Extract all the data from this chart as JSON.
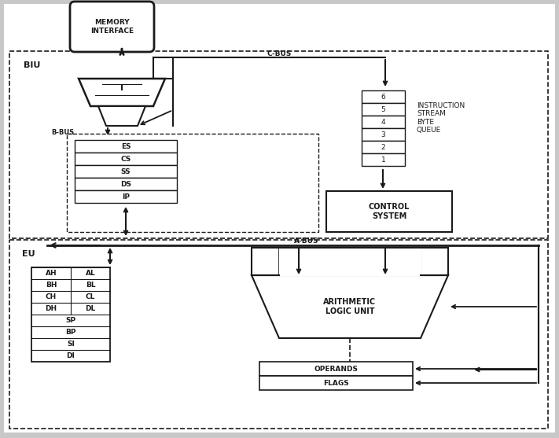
{
  "bg_color": "#c8c8c8",
  "diagram_bg": "#ffffff",
  "line_color": "#1a1a1a",
  "biu_label": "BIU",
  "eu_label": "EU",
  "cbus_label": "C-BUS",
  "abus_label": "A-BUS",
  "bbus_label": "B-BUS",
  "memory_label": "MEMORY\nINTERFACE",
  "instruction_label": "INSTRUCTION\nSTREAM\nBYTE\nQUEUE",
  "control_label": "CONTROL\nSYSTEM",
  "alu_label": "ARITHMETIC\nLOGIC UNIT",
  "operands_label": "OPERANDS",
  "flags_label": "FLAGS",
  "i_label": "I",
  "segment_regs": [
    "ES",
    "CS",
    "SS",
    "DS",
    "IP"
  ],
  "general_regs_left": [
    "AH",
    "BH",
    "CH",
    "DH"
  ],
  "general_regs_right": [
    "AL",
    "BL",
    "CL",
    "DL"
  ],
  "pointer_regs": [
    "SP",
    "BP",
    "SI",
    "DI"
  ],
  "queue_rows": [
    "6",
    "5",
    "4",
    "3",
    "2",
    "1"
  ]
}
